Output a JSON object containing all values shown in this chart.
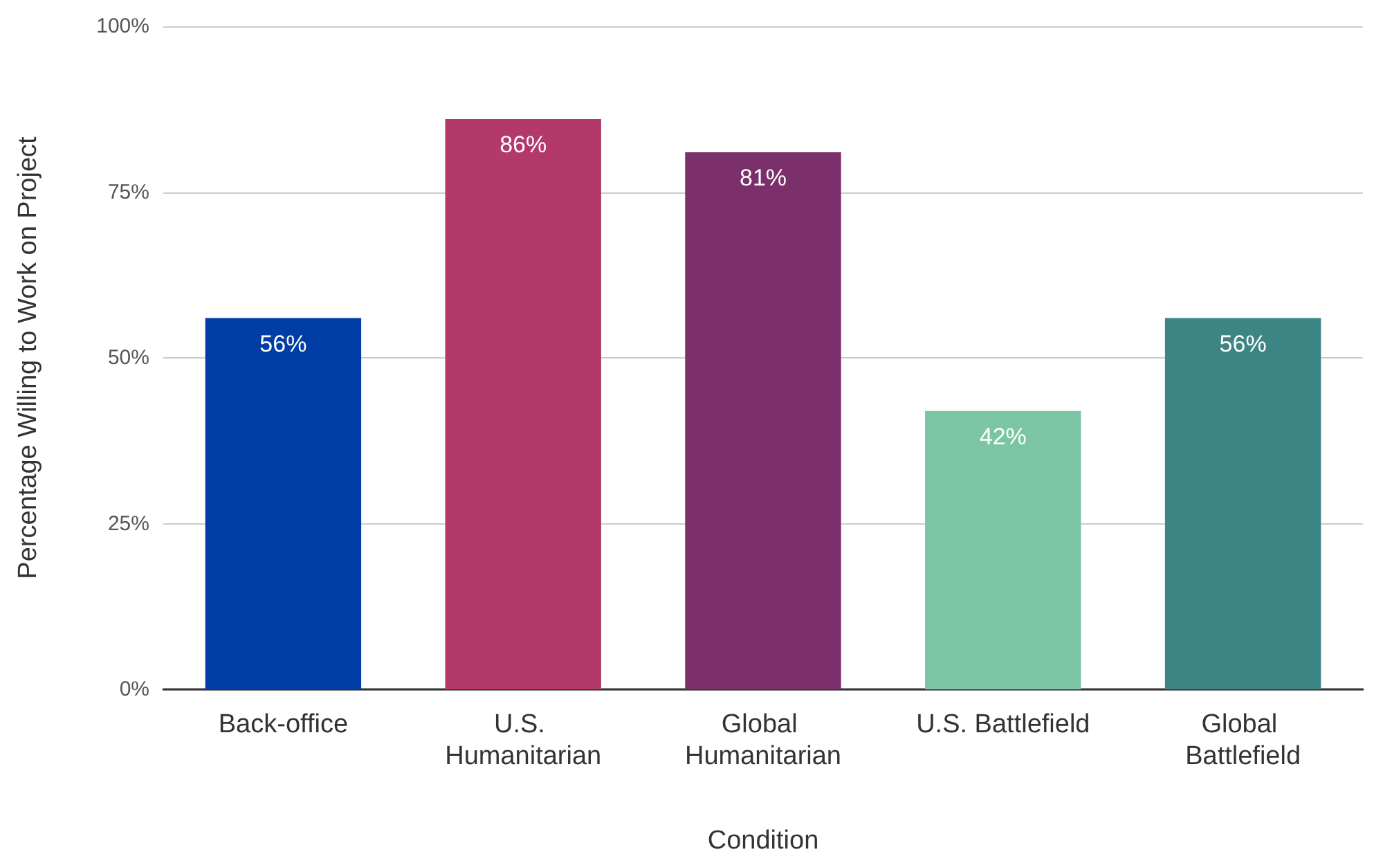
{
  "chart_data": {
    "type": "bar",
    "xlabel": "Condition",
    "ylabel": "Percentage Willing to Work on Project",
    "categories": [
      "Back-office",
      "U.S. Humanitarian",
      "Global Humanitarian",
      "U.S. Battlefield",
      "Global Battlefield"
    ],
    "values": [
      56,
      86,
      81,
      42,
      56
    ],
    "colors": [
      "#003da5",
      "#b3396a",
      "#7b306c",
      "#7bc4a4",
      "#3d8584"
    ],
    "value_labels": [
      "56%",
      "86%",
      "81%",
      "42%",
      "56%"
    ],
    "ylim": [
      0,
      100
    ],
    "yticks": [
      {
        "value": 0,
        "label": "0%"
      },
      {
        "value": 25,
        "label": "25%"
      },
      {
        "value": 50,
        "label": "50%"
      },
      {
        "value": 75,
        "label": "75%"
      },
      {
        "value": 100,
        "label": "100%"
      }
    ],
    "grid": "y"
  }
}
